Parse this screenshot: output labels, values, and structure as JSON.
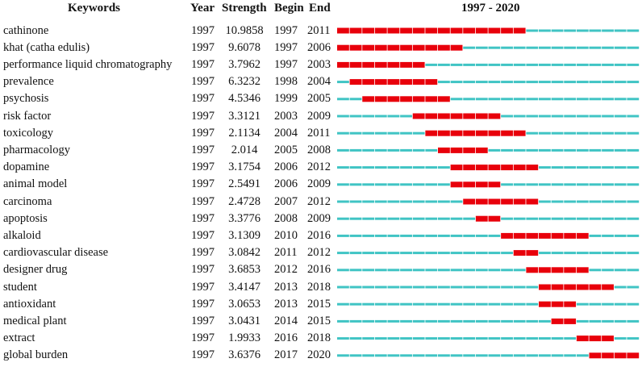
{
  "header": {
    "keywords": "Keywords",
    "year": "Year",
    "strength": "Strength",
    "begin": "Begin",
    "end": "End",
    "range": "1997 - 2020"
  },
  "colors": {
    "burst": "#e8000b",
    "baseline": "#40c4c4"
  },
  "chart_data": {
    "type": "table",
    "timeline_start": 1997,
    "timeline_end": 2020,
    "rows": [
      {
        "keyword": "cathinone",
        "year": "1997",
        "strength": "10.9858",
        "begin": "1997",
        "end": "2011"
      },
      {
        "keyword": "khat (catha edulis)",
        "year": "1997",
        "strength": "9.6078",
        "begin": "1997",
        "end": "2006"
      },
      {
        "keyword": "performance liquid chromatography",
        "year": "1997",
        "strength": "3.7962",
        "begin": "1997",
        "end": "2003"
      },
      {
        "keyword": "prevalence",
        "year": "1997",
        "strength": "6.3232",
        "begin": "1998",
        "end": "2004"
      },
      {
        "keyword": "psychosis",
        "year": "1997",
        "strength": "4.5346",
        "begin": "1999",
        "end": "2005"
      },
      {
        "keyword": "risk factor",
        "year": "1997",
        "strength": "3.3121",
        "begin": "2003",
        "end": "2009"
      },
      {
        "keyword": "toxicology",
        "year": "1997",
        "strength": "2.1134",
        "begin": "2004",
        "end": "2011"
      },
      {
        "keyword": "pharmacology",
        "year": "1997",
        "strength": "2.014",
        "begin": "2005",
        "end": "2008"
      },
      {
        "keyword": "dopamine",
        "year": "1997",
        "strength": "3.1754",
        "begin": "2006",
        "end": "2012"
      },
      {
        "keyword": "animal model",
        "year": "1997",
        "strength": "2.5491",
        "begin": "2006",
        "end": "2009"
      },
      {
        "keyword": "carcinoma",
        "year": "1997",
        "strength": "2.4728",
        "begin": "2007",
        "end": "2012"
      },
      {
        "keyword": "apoptosis",
        "year": "1997",
        "strength": "3.3776",
        "begin": "2008",
        "end": "2009"
      },
      {
        "keyword": "alkaloid",
        "year": "1997",
        "strength": "3.1309",
        "begin": "2010",
        "end": "2016"
      },
      {
        "keyword": "cardiovascular disease",
        "year": "1997",
        "strength": "3.0842",
        "begin": "2011",
        "end": "2012"
      },
      {
        "keyword": "designer drug",
        "year": "1997",
        "strength": "3.6853",
        "begin": "2012",
        "end": "2016"
      },
      {
        "keyword": "student",
        "year": "1997",
        "strength": "3.4147",
        "begin": "2013",
        "end": "2018"
      },
      {
        "keyword": "antioxidant",
        "year": "1997",
        "strength": "3.0653",
        "begin": "2013",
        "end": "2015"
      },
      {
        "keyword": "medical plant",
        "year": "1997",
        "strength": "3.0431",
        "begin": "2014",
        "end": "2015"
      },
      {
        "keyword": "extract",
        "year": "1997",
        "strength": "1.9933",
        "begin": "2016",
        "end": "2018"
      },
      {
        "keyword": "global burden",
        "year": "1997",
        "strength": "3.6376",
        "begin": "2017",
        "end": "2020"
      }
    ]
  }
}
